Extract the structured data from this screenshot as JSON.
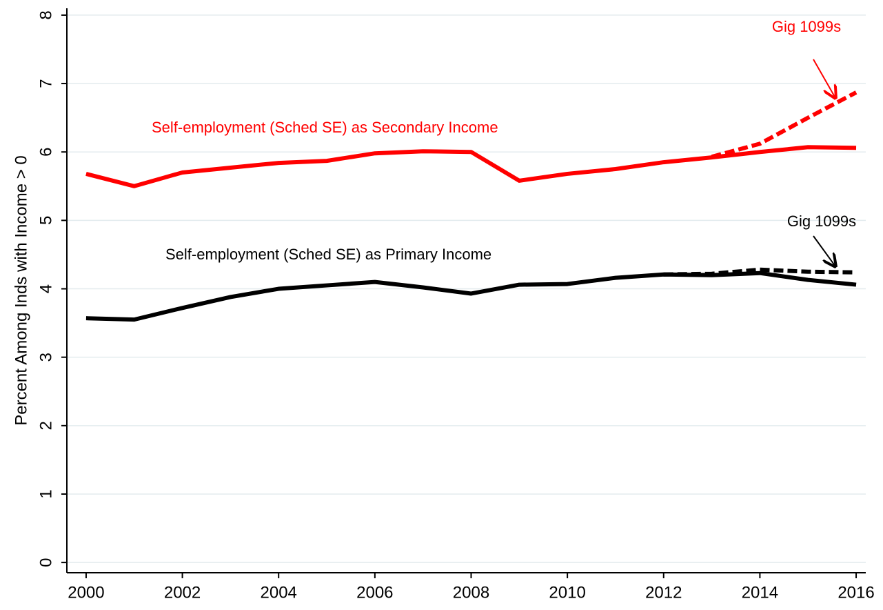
{
  "chart_data": {
    "type": "line",
    "y_label": "Percent Among Inds with Income > 0",
    "annotations": [
      "Self-employment (Sched SE) as Secondary Income",
      "Gig 1099s",
      "Self-employment (Sched SE) as Primary Income",
      "Gig 1099s"
    ],
    "x": [
      2000,
      2001,
      2002,
      2003,
      2004,
      2005,
      2006,
      2007,
      2008,
      2009,
      2010,
      2011,
      2012,
      2013,
      2014,
      2015,
      2016
    ],
    "series": [
      {
        "color": "#ff0000",
        "dash": true,
        "values": [
          null,
          null,
          null,
          null,
          null,
          null,
          null,
          null,
          null,
          null,
          null,
          null,
          null,
          5.93,
          6.12,
          6.5,
          6.87
        ]
      },
      {
        "color": "#000000",
        "dash": true,
        "values": [
          null,
          null,
          null,
          null,
          null,
          null,
          null,
          null,
          null,
          null,
          null,
          null,
          4.21,
          4.22,
          4.28,
          4.25,
          4.24
        ]
      },
      {
        "color": "#ff0000",
        "dash": false,
        "values": [
          5.68,
          5.5,
          5.7,
          5.77,
          5.84,
          5.87,
          5.98,
          6.01,
          6.0,
          5.58,
          5.68,
          5.75,
          5.85,
          5.92,
          6.0,
          6.07,
          6.06
        ]
      },
      {
        "color": "#000000",
        "dash": false,
        "values": [
          3.57,
          3.55,
          3.72,
          3.88,
          4.0,
          4.05,
          4.1,
          4.02,
          3.93,
          4.06,
          4.07,
          4.16,
          4.21,
          4.2,
          4.23,
          4.13,
          4.06
        ]
      }
    ],
    "xlim": [
      1999.6,
      2016.2
    ],
    "xticks": [
      2000,
      2002,
      2004,
      2006,
      2008,
      2010,
      2012,
      2014,
      2016
    ],
    "ylim": [
      -0.15,
      8.1
    ],
    "yticks": [
      0,
      1,
      2,
      3,
      4,
      5,
      6,
      7,
      8
    ],
    "grid": true
  }
}
